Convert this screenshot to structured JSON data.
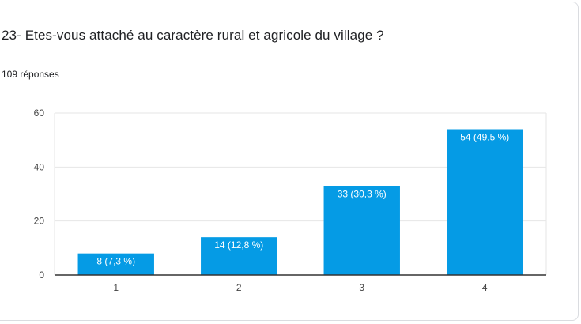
{
  "question": {
    "title": "23- Etes-vous attaché au caractère rural et agricole du village ?",
    "response_count": "109 réponses"
  },
  "colors": {
    "bar": "#059be5",
    "gridline": "#e6e6e6",
    "axis": "#333333"
  },
  "chart_data": {
    "type": "bar",
    "title": "",
    "xlabel": "",
    "ylabel": "",
    "categories": [
      "1",
      "2",
      "3",
      "4"
    ],
    "values": [
      8,
      14,
      33,
      54
    ],
    "data_labels": [
      "8 (7,3 %)",
      "14 (12,8 %)",
      "33 (30,3 %)",
      "54 (49,5 %)"
    ],
    "ylim": [
      0,
      60
    ],
    "yticks": [
      0,
      20,
      40,
      60
    ],
    "grid": true,
    "legend": "none"
  }
}
